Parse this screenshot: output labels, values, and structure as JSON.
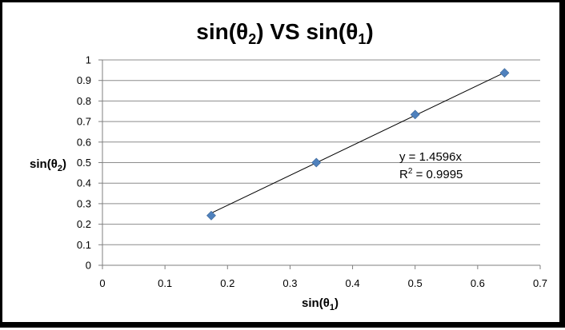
{
  "chart_data": {
    "type": "scatter",
    "title": {
      "base": "sin(θ",
      "sub": "2",
      "mid": ") VS sin(θ",
      "sub2": "1",
      "end": ")"
    },
    "xlabel": {
      "base": "sin(θ",
      "sub": "1",
      "end": ")"
    },
    "ylabel": {
      "base": "sin(θ",
      "sub": "2",
      "end": ")"
    },
    "xlim": [
      0,
      0.7
    ],
    "ylim": [
      0,
      1
    ],
    "x_ticks": [
      "0",
      "0.1",
      "0.2",
      "0.3",
      "0.4",
      "0.5",
      "0.6",
      "0.7"
    ],
    "y_ticks": [
      "0",
      "0.1",
      "0.2",
      "0.3",
      "0.4",
      "0.5",
      "0.6",
      "0.7",
      "0.8",
      "0.9",
      "1"
    ],
    "grid": true,
    "points": [
      {
        "x": 0.174,
        "y": 0.242
      },
      {
        "x": 0.342,
        "y": 0.5
      },
      {
        "x": 0.5,
        "y": 0.734
      },
      {
        "x": 0.643,
        "y": 0.937
      }
    ],
    "trendline": {
      "slope": 1.4596,
      "intercept": 0,
      "x_start": 0.174,
      "x_end": 0.643
    },
    "equation": "y = 1.4596x",
    "r_squared": {
      "base": "R",
      "sup": "2",
      "rest": " = 0.9995"
    },
    "marker_color": "#4f81bd"
  }
}
